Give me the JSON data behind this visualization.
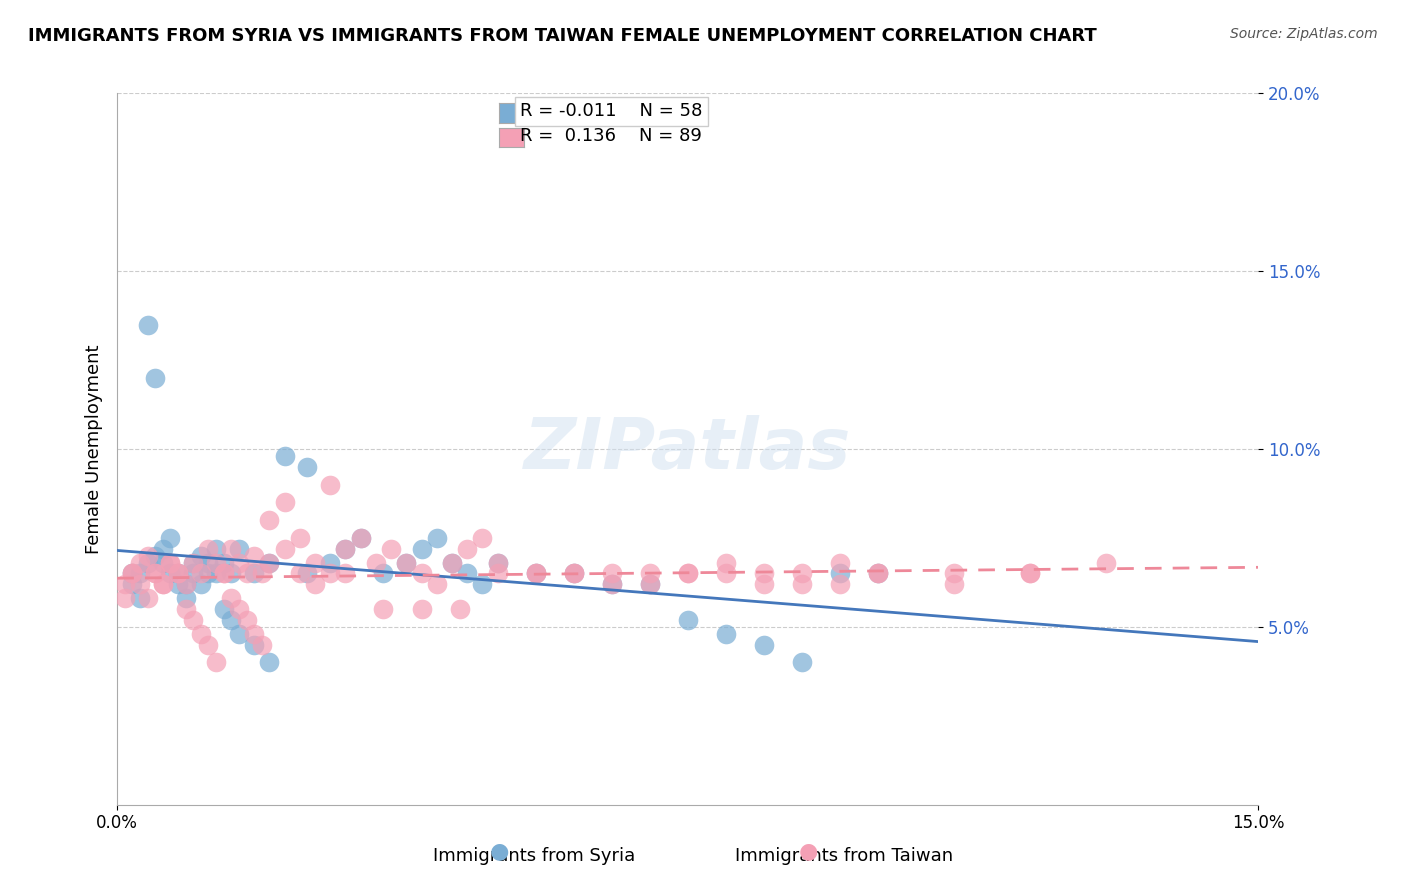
{
  "title": "IMMIGRANTS FROM SYRIA VS IMMIGRANTS FROM TAIWAN FEMALE UNEMPLOYMENT CORRELATION CHART",
  "source": "Source: ZipAtlas.com",
  "xlabel_bottom": "",
  "ylabel": "Female Unemployment",
  "xlabel_left": "Immigrants from Syria",
  "xlabel_right": "Immigrants from Taiwan",
  "xlim": [
    0,
    0.15
  ],
  "ylim": [
    0,
    0.2
  ],
  "yticks": [
    0.05,
    0.1,
    0.15,
    0.2
  ],
  "ytick_labels": [
    "5.0%",
    "10.0%",
    "15.0%",
    "20.0%"
  ],
  "xticks": [
    0.0,
    0.15
  ],
  "xtick_labels": [
    "0.0%",
    "15.0%"
  ],
  "syria_color": "#7aadd4",
  "taiwan_color": "#f4a0b5",
  "syria_line_color": "#4477bb",
  "taiwan_line_color": "#ee8899",
  "legend_R_syria": "-0.011",
  "legend_N_syria": "58",
  "legend_R_taiwan": "0.136",
  "legend_N_taiwan": "89",
  "watermark": "ZIPatlas",
  "syria_x": [
    0.002,
    0.003,
    0.004,
    0.005,
    0.006,
    0.007,
    0.008,
    0.009,
    0.01,
    0.011,
    0.012,
    0.013,
    0.014,
    0.015,
    0.016,
    0.018,
    0.02,
    0.022,
    0.025,
    0.028,
    0.03,
    0.032,
    0.035,
    0.038,
    0.04,
    0.042,
    0.044,
    0.046,
    0.048,
    0.05,
    0.055,
    0.06,
    0.065,
    0.07,
    0.075,
    0.08,
    0.085,
    0.09,
    0.095,
    0.1,
    0.002,
    0.003,
    0.004,
    0.005,
    0.006,
    0.007,
    0.008,
    0.009,
    0.01,
    0.011,
    0.012,
    0.013,
    0.014,
    0.015,
    0.016,
    0.018,
    0.02,
    0.025
  ],
  "syria_y": [
    0.065,
    0.065,
    0.068,
    0.07,
    0.072,
    0.075,
    0.065,
    0.062,
    0.068,
    0.07,
    0.065,
    0.072,
    0.068,
    0.065,
    0.072,
    0.065,
    0.068,
    0.098,
    0.095,
    0.068,
    0.072,
    0.075,
    0.065,
    0.068,
    0.072,
    0.075,
    0.068,
    0.065,
    0.062,
    0.068,
    0.065,
    0.065,
    0.062,
    0.062,
    0.052,
    0.048,
    0.045,
    0.04,
    0.065,
    0.065,
    0.062,
    0.058,
    0.135,
    0.12,
    0.068,
    0.065,
    0.062,
    0.058,
    0.065,
    0.062,
    0.068,
    0.065,
    0.055,
    0.052,
    0.048,
    0.045,
    0.04,
    0.065
  ],
  "taiwan_x": [
    0.001,
    0.002,
    0.003,
    0.004,
    0.005,
    0.006,
    0.007,
    0.008,
    0.009,
    0.01,
    0.011,
    0.012,
    0.013,
    0.014,
    0.015,
    0.016,
    0.017,
    0.018,
    0.019,
    0.02,
    0.022,
    0.024,
    0.026,
    0.028,
    0.03,
    0.032,
    0.034,
    0.036,
    0.038,
    0.04,
    0.042,
    0.044,
    0.046,
    0.048,
    0.05,
    0.055,
    0.06,
    0.065,
    0.07,
    0.075,
    0.08,
    0.085,
    0.09,
    0.095,
    0.1,
    0.11,
    0.12,
    0.13,
    0.001,
    0.002,
    0.003,
    0.004,
    0.005,
    0.006,
    0.007,
    0.008,
    0.009,
    0.01,
    0.011,
    0.012,
    0.013,
    0.014,
    0.015,
    0.016,
    0.017,
    0.018,
    0.019,
    0.02,
    0.022,
    0.024,
    0.026,
    0.028,
    0.03,
    0.035,
    0.04,
    0.045,
    0.05,
    0.055,
    0.06,
    0.065,
    0.07,
    0.075,
    0.08,
    0.085,
    0.09,
    0.095,
    0.1,
    0.11,
    0.12
  ],
  "taiwan_y": [
    0.062,
    0.065,
    0.068,
    0.07,
    0.065,
    0.062,
    0.068,
    0.065,
    0.062,
    0.068,
    0.065,
    0.072,
    0.068,
    0.065,
    0.072,
    0.068,
    0.065,
    0.07,
    0.065,
    0.068,
    0.072,
    0.075,
    0.068,
    0.065,
    0.072,
    0.075,
    0.068,
    0.072,
    0.068,
    0.065,
    0.062,
    0.068,
    0.072,
    0.075,
    0.068,
    0.065,
    0.065,
    0.062,
    0.062,
    0.065,
    0.065,
    0.062,
    0.065,
    0.068,
    0.065,
    0.062,
    0.065,
    0.068,
    0.058,
    0.065,
    0.062,
    0.058,
    0.065,
    0.062,
    0.068,
    0.065,
    0.055,
    0.052,
    0.048,
    0.045,
    0.04,
    0.065,
    0.058,
    0.055,
    0.052,
    0.048,
    0.045,
    0.08,
    0.085,
    0.065,
    0.062,
    0.09,
    0.065,
    0.055,
    0.055,
    0.055,
    0.065,
    0.065,
    0.065,
    0.065,
    0.065,
    0.065,
    0.068,
    0.065,
    0.062,
    0.062,
    0.065,
    0.065,
    0.065
  ]
}
